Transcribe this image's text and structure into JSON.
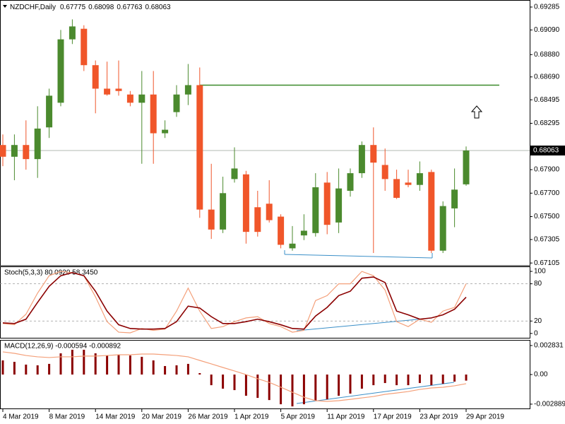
{
  "chart_data": [
    {
      "type": "candlestick",
      "title": "NZDCHF,Daily",
      "categories": [
        "4 Mar 2019",
        null,
        null,
        null,
        "8 Mar 2019",
        null,
        null,
        null,
        "14 Mar 2019",
        null,
        null,
        null,
        "20 Mar 2019",
        null,
        null,
        null,
        "26 Mar 2019",
        null,
        null,
        null,
        "1 Apr 2019",
        null,
        null,
        null,
        "5 Apr 2019",
        null,
        null,
        null,
        "11 Apr 2019",
        null,
        null,
        null,
        "17 Apr 2019",
        null,
        null,
        null,
        "23 Apr 2019",
        null,
        null,
        null,
        "29 Apr 2019"
      ],
      "open": [
        0.6811,
        0.6801,
        0.6811,
        0.6799,
        0.6826,
        0.6847,
        0.6901,
        0.691,
        0.6879,
        0.6859,
        0.6859,
        0.6854,
        0.6847,
        0.6854,
        0.6821,
        0.6839,
        0.6854,
        0.6862,
        0.6756,
        0.6739,
        0.6782,
        0.6786,
        0.6758,
        0.6761,
        0.675,
        0.6723,
        0.6734,
        0.6736,
        0.6779,
        0.6745,
        0.6772,
        0.6787,
        0.6811,
        0.6794,
        0.6782,
        0.6779,
        0.6777,
        0.6788,
        0.6721,
        0.6757,
        0.67775
      ],
      "high": [
        0.682,
        0.682,
        0.6832,
        0.6844,
        0.6859,
        0.6909,
        0.6918,
        0.6913,
        0.6883,
        0.6882,
        0.6883,
        0.6857,
        0.6874,
        0.6874,
        0.6832,
        0.6862,
        0.688,
        0.6877,
        0.6795,
        0.6784,
        0.6809,
        0.6789,
        0.6772,
        0.6781,
        0.6752,
        0.6742,
        0.6752,
        0.6787,
        0.6788,
        0.6791,
        0.6791,
        0.6814,
        0.6826,
        0.6808,
        0.679,
        0.679,
        0.6797,
        0.679,
        0.6763,
        0.6791,
        0.68098
      ],
      "low": [
        0.6793,
        0.6781,
        0.679,
        0.6783,
        0.6817,
        0.6844,
        0.6897,
        0.6874,
        0.6838,
        0.6853,
        0.6853,
        0.6844,
        0.6795,
        0.6795,
        0.6817,
        0.6835,
        0.6845,
        0.6749,
        0.6731,
        0.6736,
        0.6779,
        0.6727,
        0.6733,
        0.6745,
        0.6723,
        0.6721,
        0.673,
        0.6733,
        0.6735,
        0.6736,
        0.6767,
        0.6783,
        0.6719,
        0.6772,
        0.6765,
        0.6775,
        0.6772,
        0.6719,
        0.6719,
        0.6741,
        0.67763
      ],
      "close": [
        0.6801,
        0.6811,
        0.6799,
        0.6825,
        0.6853,
        0.6901,
        0.6912,
        0.6879,
        0.6859,
        0.6854,
        0.6857,
        0.6847,
        0.6854,
        0.6821,
        0.6824,
        0.6854,
        0.6862,
        0.6756,
        0.6739,
        0.677,
        0.6791,
        0.6737,
        0.6737,
        0.6747,
        0.6726,
        0.6727,
        0.6738,
        0.6775,
        0.6743,
        0.6774,
        0.6787,
        0.6811,
        0.6796,
        0.6782,
        0.6766,
        0.6777,
        0.6787,
        0.6721,
        0.6759,
        0.6773,
        0.68063
      ],
      "up_color": "#4b8a2e",
      "down_color": "#f0562a",
      "ylim": [
        0.67088,
        0.69345
      ],
      "yticks": [
        0.69285,
        {
          "value": 0.6909,
          "label": "0.69090"
        },
        {
          "value": 0.6888,
          "label": "0.68880"
        },
        {
          "value": 0.6869,
          "label": "0.68690"
        },
        0.68495,
        0.68295,
        {
          "value": 0.679,
          "label": "0.67900"
        },
        {
          "value": 0.677,
          "label": "0.67700"
        },
        {
          "value": 0.675,
          "label": "0.67500"
        },
        0.67305,
        0.67105
      ],
      "horizontal_line": {
        "value": 0.6862,
        "color": "#3b8a2a"
      }
    },
    {
      "type": "line",
      "title": "Stoch(5,3,3) 80.0920 58.3450",
      "series": [
        {
          "color": "#f4a07a",
          "values": [
            16,
            14,
            31,
            65,
            93,
            100,
            98,
            93,
            59,
            19,
            2,
            1,
            8,
            5,
            7,
            36,
            73,
            36,
            8,
            11,
            19,
            25,
            27,
            16,
            11,
            2,
            5,
            53,
            61,
            80,
            80,
            100,
            93,
            70,
            19,
            11,
            23,
            18,
            36,
            42,
            80.092
          ]
        },
        {
          "color": "#8b0000",
          "values": [
            17,
            16,
            23,
            50,
            76,
            93,
            98,
            93,
            68,
            36,
            14,
            8,
            7,
            7,
            8,
            19,
            44,
            41,
            27,
            16,
            16,
            19,
            23,
            19,
            14,
            8,
            7,
            28,
            42,
            61,
            68,
            89,
            91,
            82,
            36,
            30,
            23,
            25,
            30,
            39,
            58.345
          ]
        }
      ],
      "ylim": [
        -7,
        108
      ],
      "yticks": [
        100,
        80,
        20,
        0
      ],
      "levels": [
        80,
        20
      ]
    },
    {
      "type": "macd",
      "title": "MACD(12,26,9) -0.000594 -0.000892",
      "series": [
        {
          "type": "bar",
          "color": "#8b0000",
          "values": [
            0.00138,
            0.00124,
            0.00097,
            0.0009,
            0.00104,
            0.00207,
            0.00242,
            0.00242,
            0.00207,
            0.00186,
            0.00193,
            0.00186,
            0.00173,
            0.00138,
            0.00083,
            0.0009,
            0.00104,
            0.00014,
            -0.00104,
            -0.00138,
            -0.00152,
            -0.00207,
            -0.00228,
            -0.00249,
            -0.0029,
            -0.00311,
            -0.0029,
            -0.00255,
            -0.00242,
            -0.00207,
            -0.00186,
            -0.00138,
            -0.00104,
            -0.00083,
            -0.00104,
            -0.00104,
            -0.00083,
            -0.00104,
            -0.0009,
            -0.00069,
            -0.000594
          ]
        },
        {
          "type": "line",
          "color": "#f4a07a",
          "values": [
            0.00221,
            0.00207,
            0.00186,
            0.00173,
            0.00166,
            0.00173,
            0.00173,
            0.0018,
            0.0018,
            0.00186,
            0.00193,
            0.00193,
            0.002,
            0.002,
            0.00193,
            0.00186,
            0.00173,
            0.00138,
            0.00104,
            0.00069,
            0.00035,
            0,
            -0.00041,
            -0.00076,
            -0.00124,
            -0.00173,
            -0.00221,
            -0.00255,
            -0.00262,
            -0.00255,
            -0.00242,
            -0.00228,
            -0.00214,
            -0.00193,
            -0.0018,
            -0.00166,
            -0.00145,
            -0.00131,
            -0.00124,
            -0.0011,
            -0.000892
          ]
        }
      ],
      "ylim": [
        -0.00331,
        0.00338
      ],
      "yticks": [
        0.002831,
        {
          "value": 0,
          "label": "0.00"
        },
        -0.002889
      ]
    }
  ]
}
